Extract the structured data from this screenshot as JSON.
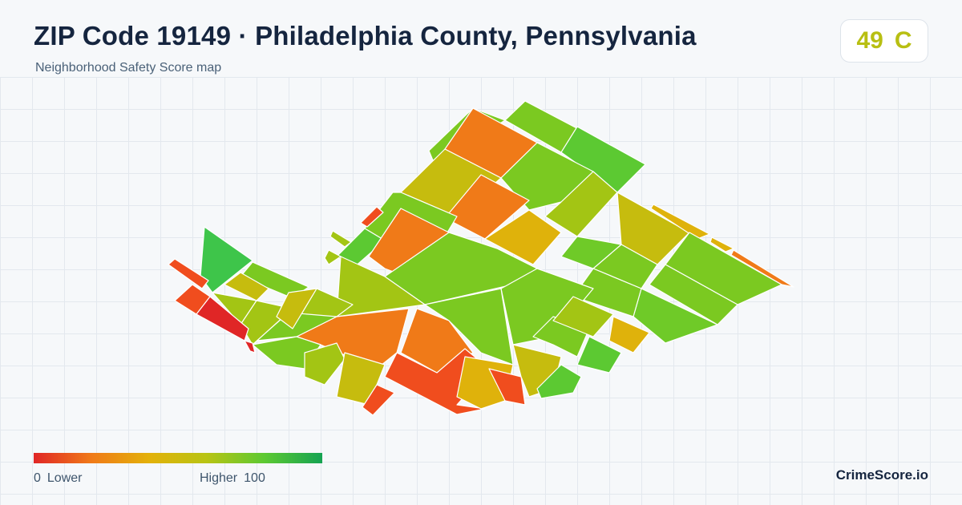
{
  "header": {
    "title": "ZIP Code 19149 · Philadelphia County, Pennsylvania",
    "subtitle": "Neighborhood Safety Score map"
  },
  "score_badge": {
    "score": "49",
    "grade": "C",
    "color": "#b8bf12"
  },
  "legend": {
    "min_value": "0",
    "min_label": "Lower",
    "max_label": "Higher",
    "max_value": "100",
    "gradient_colors": [
      "#e02626",
      "#f07a18",
      "#e3b10a",
      "#b8c414",
      "#5cc932",
      "#16a352"
    ]
  },
  "brand": {
    "name": "CrimeScore.io"
  }
}
